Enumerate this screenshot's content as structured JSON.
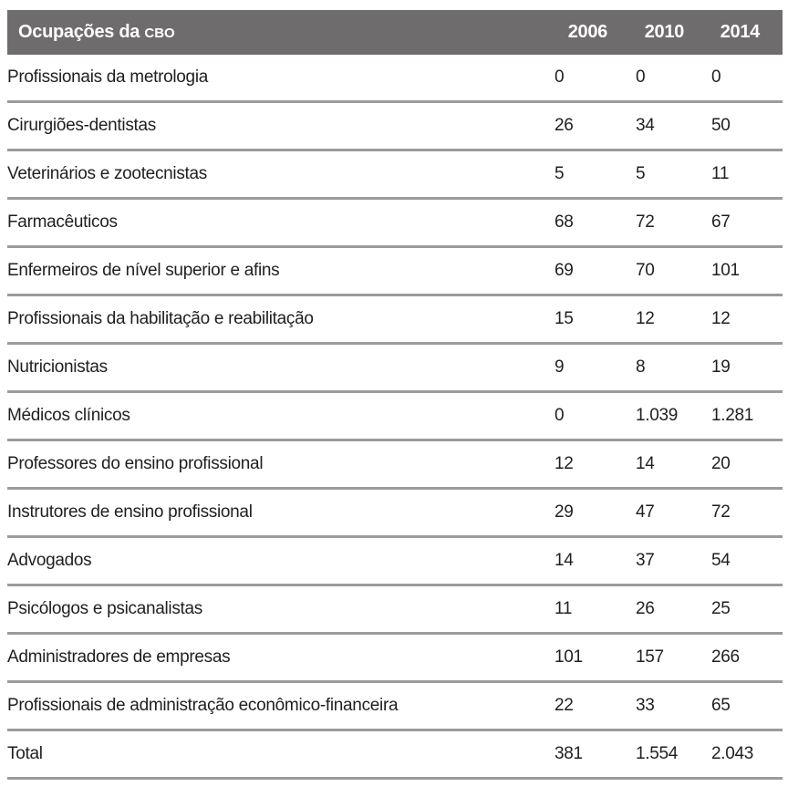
{
  "colors": {
    "header_background": "#6e6c6d",
    "header_text": "#ffffff",
    "row_border": "#9c9b9b",
    "body_text": "#221e1f",
    "page_background": "#ffffff"
  },
  "table": {
    "header": {
      "occupation_label": "Ocupações da",
      "occupation_abbr": "CBO",
      "years": [
        "2006",
        "2010",
        "2014"
      ]
    },
    "rows": [
      {
        "occupation": "Profissionais da metrologia",
        "values": [
          "0",
          "0",
          "0"
        ]
      },
      {
        "occupation": "Cirurgiões-dentistas",
        "values": [
          "26",
          "34",
          "50"
        ]
      },
      {
        "occupation": "Veterinários e zootecnistas",
        "values": [
          "5",
          "5",
          "11"
        ]
      },
      {
        "occupation": "Farmacêuticos",
        "values": [
          "68",
          "72",
          "67"
        ]
      },
      {
        "occupation": "Enfermeiros de nível superior e afins",
        "values": [
          "69",
          "70",
          "101"
        ]
      },
      {
        "occupation": "Profissionais da habilitação e reabilitação",
        "values": [
          "15",
          "12",
          "12"
        ]
      },
      {
        "occupation": "Nutricionistas",
        "values": [
          "9",
          "8",
          "19"
        ]
      },
      {
        "occupation": "Médicos clínicos",
        "values": [
          "0",
          "1.039",
          "1.281"
        ]
      },
      {
        "occupation": "Professores do ensino profissional",
        "values": [
          "12",
          "14",
          "20"
        ]
      },
      {
        "occupation": "Instrutores de ensino profissional",
        "values": [
          "29",
          "47",
          "72"
        ]
      },
      {
        "occupation": "Advogados",
        "values": [
          "14",
          "37",
          "54"
        ]
      },
      {
        "occupation": "Psicólogos e psicanalistas",
        "values": [
          "11",
          "26",
          "25"
        ]
      },
      {
        "occupation": "Administradores de empresas",
        "values": [
          "101",
          "157",
          "266"
        ]
      },
      {
        "occupation": "Profissionais de administração econômico-financeira",
        "values": [
          "22",
          "33",
          "65"
        ]
      },
      {
        "occupation": "Total",
        "values": [
          "381",
          "1.554",
          "2.043"
        ]
      }
    ]
  },
  "chart_data": {
    "type": "table",
    "title": "Ocupações da CBO",
    "columns": [
      "Ocupações da CBO",
      "2006",
      "2010",
      "2014"
    ],
    "rows": [
      [
        "Profissionais da metrologia",
        0,
        0,
        0
      ],
      [
        "Cirurgiões-dentistas",
        26,
        34,
        50
      ],
      [
        "Veterinários e zootecnistas",
        5,
        5,
        11
      ],
      [
        "Farmacêuticos",
        68,
        72,
        67
      ],
      [
        "Enfermeiros de nível superior e afins",
        69,
        70,
        101
      ],
      [
        "Profissionais da habilitação e reabilitação",
        15,
        12,
        12
      ],
      [
        "Nutricionistas",
        9,
        8,
        19
      ],
      [
        "Médicos clínicos",
        0,
        1039,
        1281
      ],
      [
        "Professores do ensino profissional",
        12,
        14,
        20
      ],
      [
        "Instrutores de ensino profissional",
        29,
        47,
        72
      ],
      [
        "Advogados",
        14,
        37,
        54
      ],
      [
        "Psicólogos e psicanalistas",
        11,
        26,
        25
      ],
      [
        "Administradores de empresas",
        101,
        157,
        266
      ],
      [
        "Profissionais de administração econômico-financeira",
        22,
        33,
        65
      ],
      [
        "Total",
        381,
        1554,
        2043
      ]
    ],
    "number_format": "pt-BR thousands separator (.)",
    "layout": "header row dark gray, value columns left-aligned, year headers right-aligned"
  }
}
